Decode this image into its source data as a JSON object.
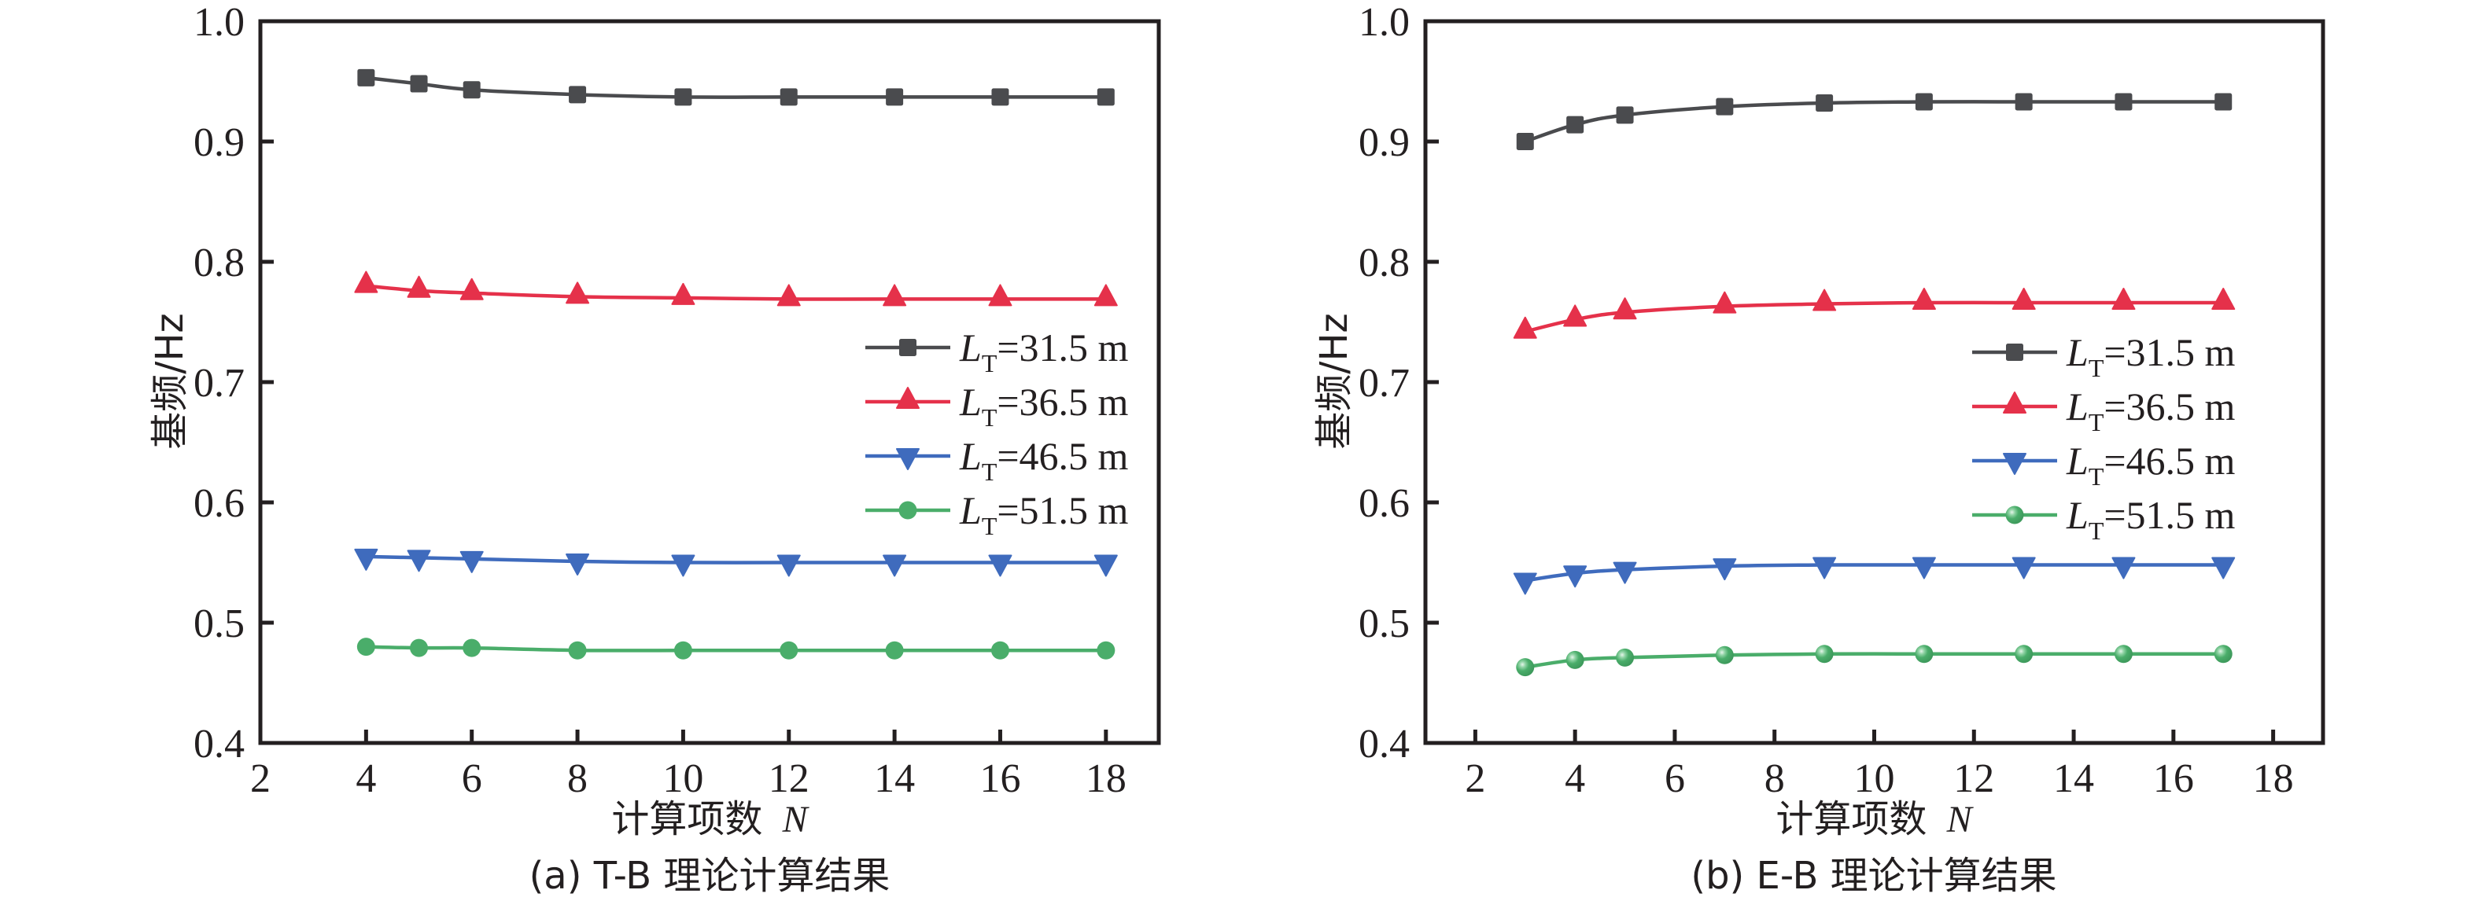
{
  "chart_data": [
    {
      "id": "a",
      "type": "line",
      "caption": "(a) T-B 理论计算结果",
      "xlabel": "计算项数",
      "xlabel_var": "N",
      "ylabel": "基频/Hz",
      "xlim": [
        2,
        19
      ],
      "ylim": [
        0.4,
        1.0
      ],
      "xticks": [
        2,
        4,
        6,
        8,
        10,
        12,
        14,
        16,
        18
      ],
      "yticks": [
        0.4,
        0.5,
        0.6,
        0.7,
        0.8,
        0.9,
        1.0
      ],
      "ytick_labels": [
        "0.4",
        "0.5",
        "0.6",
        "0.7",
        "0.8",
        "0.9",
        "1.0"
      ],
      "grid": false,
      "legend_position": "center-right",
      "x": [
        4,
        5,
        6,
        8,
        10,
        12,
        14,
        16,
        18
      ],
      "series": [
        {
          "name": "L_T=31.5 m",
          "label_main": "L",
          "label_sub": "T",
          "label_rest": "=31.5 m",
          "marker": "square",
          "color": "#4a4b4e",
          "values": [
            0.953,
            0.948,
            0.943,
            0.939,
            0.937,
            0.937,
            0.937,
            0.937,
            0.937
          ]
        },
        {
          "name": "L_T=36.5 m",
          "label_main": "L",
          "label_sub": "T",
          "label_rest": "=36.5 m",
          "marker": "triangle-up",
          "color": "#e5314a",
          "values": [
            0.78,
            0.776,
            0.774,
            0.771,
            0.77,
            0.769,
            0.769,
            0.769,
            0.769
          ]
        },
        {
          "name": "L_T=46.5 m",
          "label_main": "L",
          "label_sub": "T",
          "label_rest": "=46.5 m",
          "marker": "triangle-down",
          "color": "#3f6bbd",
          "values": [
            0.555,
            0.554,
            0.553,
            0.551,
            0.55,
            0.55,
            0.55,
            0.55,
            0.55
          ]
        },
        {
          "name": "L_T=51.5 m",
          "label_main": "L",
          "label_sub": "T",
          "label_rest": "=51.5 m",
          "marker": "circle",
          "color": "#4aad6a",
          "values": [
            0.48,
            0.479,
            0.479,
            0.477,
            0.477,
            0.477,
            0.477,
            0.477,
            0.477
          ]
        }
      ]
    },
    {
      "id": "b",
      "type": "line",
      "caption": "(b) E-B 理论计算结果",
      "xlabel": "计算项数",
      "xlabel_var": "N",
      "ylabel": "基频/Hz",
      "xlim": [
        1,
        19
      ],
      "ylim": [
        0.4,
        1.0
      ],
      "xticks": [
        2,
        4,
        6,
        8,
        10,
        12,
        14,
        16,
        18
      ],
      "yticks": [
        0.4,
        0.5,
        0.6,
        0.7,
        0.8,
        0.9,
        1.0
      ],
      "ytick_labels": [
        "0.4",
        "0.5",
        "0.6",
        "0.7",
        "0.8",
        "0.9",
        "1.0"
      ],
      "grid": false,
      "legend_position": "center-right",
      "x": [
        3,
        4,
        5,
        7,
        9,
        11,
        13,
        15,
        17
      ],
      "series": [
        {
          "name": "L_T=31.5 m",
          "label_main": "L",
          "label_sub": "T",
          "label_rest": "=31.5 m",
          "marker": "square",
          "color": "#4a4b4e",
          "values": [
            0.9,
            0.914,
            0.922,
            0.929,
            0.932,
            0.933,
            0.933,
            0.933,
            0.933
          ]
        },
        {
          "name": "L_T=36.5 m",
          "label_main": "L",
          "label_sub": "T",
          "label_rest": "=36.5 m",
          "marker": "triangle-up",
          "color": "#e5314a",
          "values": [
            0.742,
            0.752,
            0.758,
            0.763,
            0.765,
            0.766,
            0.766,
            0.766,
            0.766
          ]
        },
        {
          "name": "L_T=46.5 m",
          "label_main": "L",
          "label_sub": "T",
          "label_rest": "=46.5 m",
          "marker": "triangle-down",
          "color": "#3f6bbd",
          "values": [
            0.535,
            0.541,
            0.544,
            0.547,
            0.548,
            0.548,
            0.548,
            0.548,
            0.548
          ]
        },
        {
          "name": "L_T=51.5 m",
          "label_main": "L",
          "label_sub": "T",
          "label_rest": "=51.5 m",
          "marker": "circle-glossy",
          "color": "#4aad6a",
          "values": [
            0.463,
            0.469,
            0.471,
            0.473,
            0.474,
            0.474,
            0.474,
            0.474,
            0.474
          ]
        }
      ]
    }
  ]
}
